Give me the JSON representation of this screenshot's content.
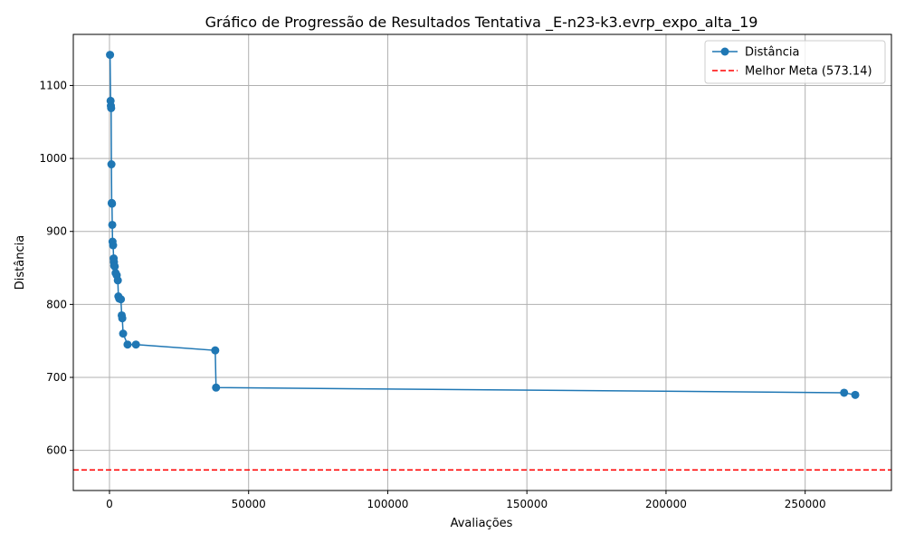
{
  "chart_data": {
    "type": "line",
    "title": "Gráfico de Progressão de Resultados Tentativa _E-n23-k3.evrp_expo_alta_19",
    "xlabel": "Avaliações",
    "ylabel": "Distância",
    "xlim": [
      -13000,
      281000
    ],
    "ylim": [
      545,
      1170
    ],
    "xticks": [
      0,
      50000,
      100000,
      150000,
      200000,
      250000
    ],
    "xtick_labels": [
      "0",
      "50000",
      "100000",
      "150000",
      "200000",
      "250000"
    ],
    "yticks": [
      600,
      700,
      800,
      900,
      1000,
      1100
    ],
    "ytick_labels": [
      "600",
      "700",
      "800",
      "900",
      "1000",
      "1100"
    ],
    "grid": true,
    "legend_position": "top-right",
    "series": [
      {
        "name": "Distância",
        "color": "#1f77b4",
        "marker": "circle",
        "x": [
          200,
          400,
          500,
          600,
          700,
          800,
          900,
          1000,
          1100,
          1300,
          1500,
          1600,
          1700,
          1900,
          2200,
          2600,
          3000,
          3200,
          3500,
          4100,
          4400,
          4600,
          4900,
          6500,
          9500,
          38000,
          38300,
          264000,
          268000
        ],
        "y": [
          1142,
          1079,
          1072,
          1069,
          992,
          939,
          938,
          909,
          886,
          881,
          863,
          858,
          853,
          852,
          843,
          840,
          833,
          811,
          808,
          807,
          785,
          781,
          760,
          745,
          745,
          737,
          686,
          679,
          676
        ]
      }
    ],
    "reference_lines": [
      {
        "name": "Melhor Meta (573.14)",
        "y": 573.14,
        "color": "#ff0000",
        "style": "dashed"
      }
    ]
  }
}
